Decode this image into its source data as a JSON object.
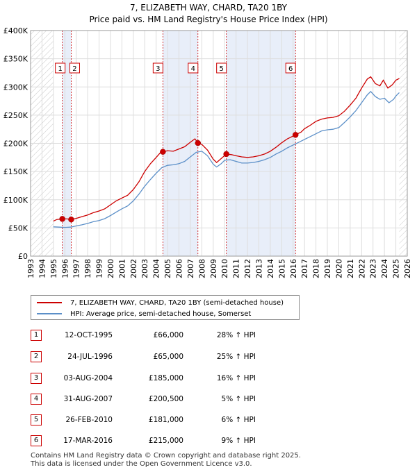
{
  "chart_data": {
    "type": "line",
    "title": "7, ELIZABETH WAY, CHARD, TA20 1BY",
    "subtitle": "Price paid vs. HM Land Registry's House Price Index (HPI)",
    "x_range": [
      1993,
      2026
    ],
    "ylim": [
      0,
      400000
    ],
    "x_ticks": [
      1993,
      1994,
      1995,
      1996,
      1997,
      1998,
      1999,
      2000,
      2001,
      2002,
      2003,
      2004,
      2005,
      2006,
      2007,
      2008,
      2009,
      2010,
      2011,
      2012,
      2013,
      2014,
      2015,
      2016,
      2017,
      2018,
      2019,
      2020,
      2021,
      2022,
      2023,
      2024,
      2025,
      2026
    ],
    "y_ticks": [
      {
        "value": 0,
        "label": "£0"
      },
      {
        "value": 50000,
        "label": "£50K"
      },
      {
        "value": 100000,
        "label": "£100K"
      },
      {
        "value": 150000,
        "label": "£150K"
      },
      {
        "value": 200000,
        "label": "£200K"
      },
      {
        "value": 250000,
        "label": "£250K"
      },
      {
        "value": 300000,
        "label": "£300K"
      },
      {
        "value": 350000,
        "label": "£350K"
      },
      {
        "value": 400000,
        "label": "£400K"
      }
    ],
    "data_start": 1995.0,
    "data_end": 2025.3,
    "shaded_periods": [
      [
        1995.78,
        1996.56
      ],
      [
        2004.59,
        2007.66
      ],
      [
        2010.15,
        2016.21
      ]
    ],
    "series": [
      {
        "name": "7, ELIZABETH WAY, CHARD, TA20 1BY (semi-detached house)",
        "color": "#cc0000",
        "points": [
          [
            1995.0,
            62000
          ],
          [
            1995.3,
            65000
          ],
          [
            1995.78,
            66000
          ],
          [
            1996.2,
            66000
          ],
          [
            1996.56,
            65000
          ],
          [
            1997.0,
            67000
          ],
          [
            1997.5,
            70000
          ],
          [
            1998.0,
            73000
          ],
          [
            1998.5,
            77000
          ],
          [
            1999.0,
            80000
          ],
          [
            1999.5,
            84000
          ],
          [
            2000.0,
            91000
          ],
          [
            2000.5,
            98000
          ],
          [
            2001.0,
            103000
          ],
          [
            2001.5,
            108000
          ],
          [
            2002.0,
            118000
          ],
          [
            2002.5,
            132000
          ],
          [
            2003.0,
            150000
          ],
          [
            2003.5,
            164000
          ],
          [
            2004.0,
            175000
          ],
          [
            2004.4,
            184000
          ],
          [
            2004.59,
            185000
          ],
          [
            2005.0,
            187000
          ],
          [
            2005.5,
            186000
          ],
          [
            2006.0,
            190000
          ],
          [
            2006.5,
            194000
          ],
          [
            2007.0,
            202000
          ],
          [
            2007.4,
            208000
          ],
          [
            2007.66,
            200500
          ],
          [
            2008.0,
            198000
          ],
          [
            2008.5,
            188000
          ],
          [
            2009.0,
            172000
          ],
          [
            2009.3,
            166000
          ],
          [
            2009.7,
            173000
          ],
          [
            2010.15,
            181000
          ],
          [
            2010.6,
            180000
          ],
          [
            2011.0,
            178000
          ],
          [
            2011.5,
            176000
          ],
          [
            2012.0,
            175000
          ],
          [
            2012.5,
            176000
          ],
          [
            2013.0,
            178000
          ],
          [
            2013.5,
            181000
          ],
          [
            2014.0,
            186000
          ],
          [
            2014.5,
            193000
          ],
          [
            2015.0,
            201000
          ],
          [
            2015.5,
            208000
          ],
          [
            2016.21,
            215000
          ],
          [
            2016.7,
            220000
          ],
          [
            2017.0,
            226000
          ],
          [
            2017.5,
            232000
          ],
          [
            2018.0,
            239000
          ],
          [
            2018.5,
            243000
          ],
          [
            2019.0,
            245000
          ],
          [
            2019.5,
            246000
          ],
          [
            2020.0,
            249000
          ],
          [
            2020.5,
            257000
          ],
          [
            2021.0,
            268000
          ],
          [
            2021.5,
            280000
          ],
          [
            2022.0,
            298000
          ],
          [
            2022.5,
            314000
          ],
          [
            2022.8,
            318000
          ],
          [
            2023.2,
            306000
          ],
          [
            2023.6,
            302000
          ],
          [
            2023.9,
            312000
          ],
          [
            2024.3,
            298000
          ],
          [
            2024.7,
            304000
          ],
          [
            2025.0,
            312000
          ],
          [
            2025.3,
            315000
          ]
        ]
      },
      {
        "name": "HPI: Average price, semi-detached house, Somerset",
        "color": "#5b8fc8",
        "points": [
          [
            1995.0,
            52000
          ],
          [
            1995.5,
            51500
          ],
          [
            1996.0,
            51000
          ],
          [
            1996.5,
            51500
          ],
          [
            1997.0,
            53500
          ],
          [
            1997.5,
            55500
          ],
          [
            1998.0,
            58000
          ],
          [
            1998.5,
            61000
          ],
          [
            1999.0,
            63000
          ],
          [
            1999.5,
            66500
          ],
          [
            2000.0,
            72000
          ],
          [
            2000.5,
            78000
          ],
          [
            2001.0,
            84000
          ],
          [
            2001.5,
            89000
          ],
          [
            2002.0,
            98000
          ],
          [
            2002.5,
            110000
          ],
          [
            2003.0,
            124000
          ],
          [
            2003.5,
            136000
          ],
          [
            2004.0,
            147000
          ],
          [
            2004.5,
            157000
          ],
          [
            2005.0,
            161000
          ],
          [
            2005.5,
            162000
          ],
          [
            2006.0,
            164000
          ],
          [
            2006.5,
            168000
          ],
          [
            2007.0,
            176000
          ],
          [
            2007.5,
            184000
          ],
          [
            2008.0,
            186000
          ],
          [
            2008.5,
            178000
          ],
          [
            2009.0,
            163000
          ],
          [
            2009.3,
            158000
          ],
          [
            2009.7,
            164000
          ],
          [
            2010.0,
            170000
          ],
          [
            2010.5,
            171000
          ],
          [
            2011.0,
            168000
          ],
          [
            2011.5,
            165000
          ],
          [
            2012.0,
            165000
          ],
          [
            2012.5,
            166000
          ],
          [
            2013.0,
            168000
          ],
          [
            2013.5,
            171000
          ],
          [
            2014.0,
            175000
          ],
          [
            2014.5,
            181000
          ],
          [
            2015.0,
            186000
          ],
          [
            2015.5,
            192000
          ],
          [
            2016.0,
            197000
          ],
          [
            2016.5,
            202000
          ],
          [
            2017.0,
            207000
          ],
          [
            2017.5,
            212000
          ],
          [
            2018.0,
            217000
          ],
          [
            2018.5,
            222000
          ],
          [
            2019.0,
            224000
          ],
          [
            2019.5,
            225000
          ],
          [
            2020.0,
            228000
          ],
          [
            2020.5,
            237000
          ],
          [
            2021.0,
            247000
          ],
          [
            2021.5,
            258000
          ],
          [
            2022.0,
            272000
          ],
          [
            2022.5,
            286000
          ],
          [
            2022.8,
            292000
          ],
          [
            2023.2,
            283000
          ],
          [
            2023.6,
            278000
          ],
          [
            2024.0,
            280000
          ],
          [
            2024.4,
            272000
          ],
          [
            2024.8,
            278000
          ],
          [
            2025.0,
            284000
          ],
          [
            2025.3,
            290000
          ]
        ]
      }
    ],
    "sales": [
      {
        "label": "1",
        "date": "12-OCT-1995",
        "x": 1995.78,
        "price_value": 66000,
        "price": "£66,000",
        "hpi": "28% ↑ HPI"
      },
      {
        "label": "2",
        "date": "24-JUL-1996",
        "x": 1996.56,
        "price_value": 65000,
        "price": "£65,000",
        "hpi": "25% ↑ HPI"
      },
      {
        "label": "3",
        "date": "03-AUG-2004",
        "x": 2004.59,
        "price_value": 185000,
        "price": "£185,000",
        "hpi": "16% ↑ HPI"
      },
      {
        "label": "4",
        "date": "31-AUG-2007",
        "x": 2007.66,
        "price_value": 200500,
        "price": "£200,500",
        "hpi": "5% ↑ HPI"
      },
      {
        "label": "5",
        "date": "26-FEB-2010",
        "x": 2010.15,
        "price_value": 181000,
        "price": "£181,000",
        "hpi": "6% ↑ HPI"
      },
      {
        "label": "6",
        "date": "17-MAR-2016",
        "x": 2016.21,
        "price_value": 215000,
        "price": "£215,000",
        "hpi": "9% ↑ HPI"
      }
    ]
  },
  "legend": {
    "property_label": "7, ELIZABETH WAY, CHARD, TA20 1BY (semi-detached house)",
    "hpi_label": "HPI: Average price, semi-detached house, Somerset",
    "property_color": "#cc0000",
    "hpi_color": "#5b8fc8"
  },
  "footer": {
    "line1": "Contains HM Land Registry data © Crown copyright and database right 2025.",
    "line2": "This data is licensed under the Open Government Licence v3.0."
  }
}
